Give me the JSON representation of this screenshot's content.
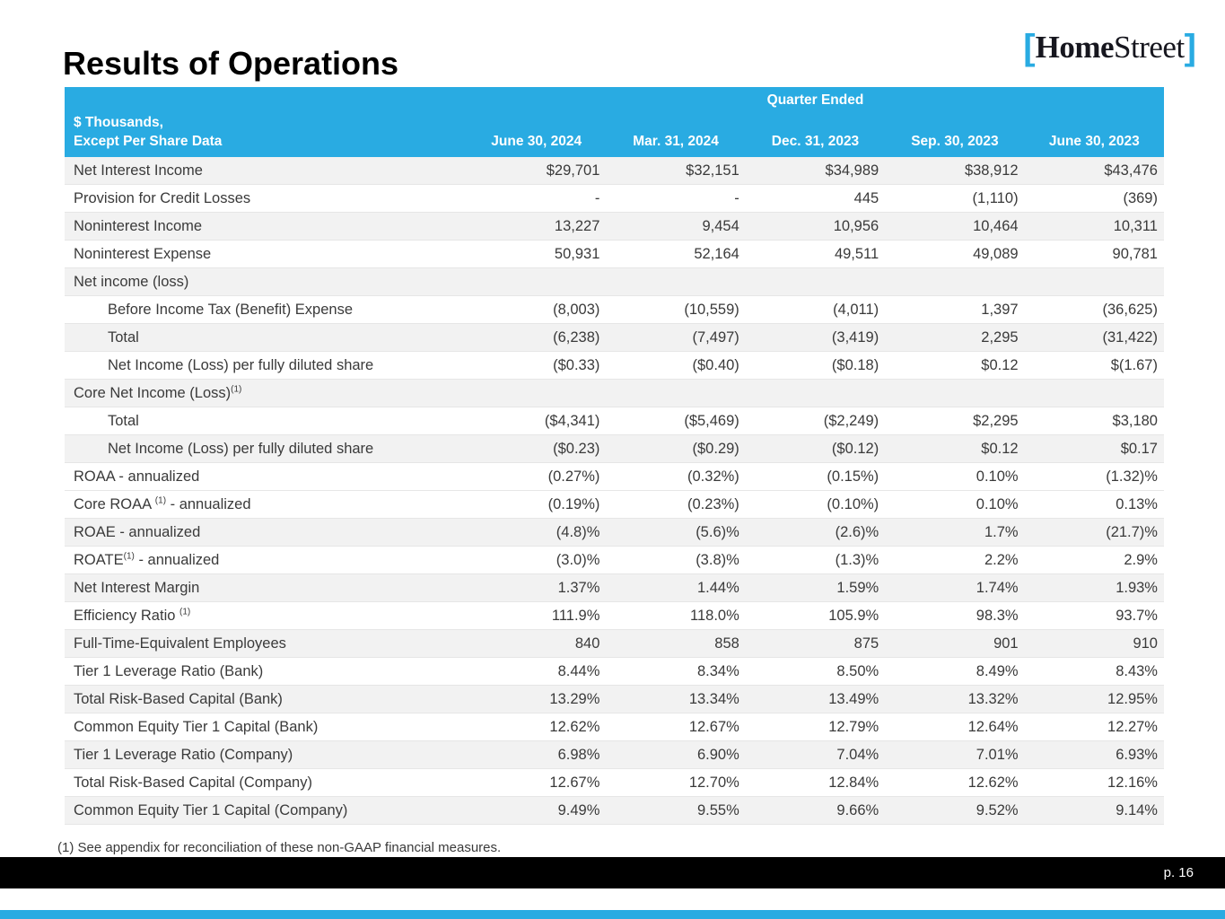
{
  "page": {
    "title": "Results of Operations",
    "logo": {
      "left_bracket": "[",
      "home": "Home",
      "street": "Street",
      "right_bracket": "]"
    },
    "footnote": "(1) See appendix for reconciliation of these non-GAAP financial measures.",
    "page_number": "p. 16"
  },
  "colors": {
    "accent_blue": "#29ABE2",
    "row_shade": "#F2F2F2",
    "footer_bar": "#000000",
    "body_text": "#3A3A3A"
  },
  "table": {
    "group_header": "Quarter Ended",
    "corner_label_line1": "$ Thousands,",
    "corner_label_line2": "Except Per Share Data",
    "columns": [
      "June 30, 2024",
      "Mar. 31, 2024",
      "Dec. 31, 2023",
      "Sep. 30, 2023",
      "June 30, 2023"
    ],
    "rows": [
      {
        "label": "Net Interest Income",
        "values": [
          "$29,701",
          "$32,151",
          "$34,989",
          "$38,912",
          "$43,476"
        ],
        "shade": true
      },
      {
        "label": "Provision for Credit Losses",
        "values": [
          "-",
          "-",
          "445",
          "(1,110)",
          "(369)"
        ]
      },
      {
        "label": "Noninterest Income",
        "values": [
          "13,227",
          "9,454",
          "10,956",
          "10,464",
          "10,311"
        ],
        "shade": true
      },
      {
        "label": "Noninterest Expense",
        "values": [
          "50,931",
          "52,164",
          "49,511",
          "49,089",
          "90,781"
        ]
      },
      {
        "label": "Net income (loss)",
        "values": [
          "",
          "",
          "",
          "",
          ""
        ],
        "section": true,
        "shade": true
      },
      {
        "label": "Before Income Tax (Benefit) Expense",
        "values": [
          "(8,003)",
          "(10,559)",
          "(4,011)",
          "1,397",
          "(36,625)"
        ],
        "indent": true
      },
      {
        "label": "Total",
        "values": [
          "(6,238)",
          "(7,497)",
          "(3,419)",
          "2,295",
          "(31,422)"
        ],
        "indent": true,
        "shade": true
      },
      {
        "label": "Net Income (Loss) per fully diluted share",
        "values": [
          "($0.33)",
          "($0.40)",
          "($0.18)",
          "$0.12",
          "$(1.67)"
        ],
        "indent": true
      },
      {
        "label": "Core Net Income (Loss)",
        "sup": "(1)",
        "values": [
          "",
          "",
          "",
          "",
          ""
        ],
        "section": true,
        "shade": true
      },
      {
        "label": "Total",
        "values": [
          "($4,341)",
          "($5,469)",
          "($2,249)",
          "$2,295",
          "$3,180"
        ],
        "indent": true
      },
      {
        "label": "Net Income (Loss) per fully diluted share",
        "values": [
          "($0.23)",
          "($0.29)",
          "($0.12)",
          "$0.12",
          "$0.17"
        ],
        "indent": true,
        "shade": true
      },
      {
        "label": "ROAA - annualized",
        "values": [
          "(0.27%)",
          "(0.32%)",
          "(0.15%)",
          "0.10%",
          "(1.32)%"
        ]
      },
      {
        "label": "Core ROAA ",
        "sup": "(1)",
        "label_after": " - annualized",
        "values": [
          "(0.19%)",
          "(0.23%)",
          "(0.10%)",
          "0.10%",
          "0.13%"
        ]
      },
      {
        "label": "ROAE - annualized",
        "values": [
          "(4.8)%",
          "(5.6)%",
          "(2.6)%",
          "1.7%",
          "(21.7)%"
        ],
        "shade": true
      },
      {
        "label": "ROATE",
        "sup": "(1)",
        "label_after": " - annualized",
        "values": [
          "(3.0)%",
          "(3.8)%",
          "(1.3)%",
          "2.2%",
          "2.9%"
        ]
      },
      {
        "label": "Net Interest Margin",
        "values": [
          "1.37%",
          "1.44%",
          "1.59%",
          "1.74%",
          "1.93%"
        ],
        "shade": true
      },
      {
        "label": "Efficiency Ratio ",
        "sup": "(1)",
        "values": [
          "111.9%",
          "118.0%",
          "105.9%",
          "98.3%",
          "93.7%"
        ]
      },
      {
        "label": "Full-Time-Equivalent Employees",
        "values": [
          "840",
          "858",
          "875",
          "901",
          "910"
        ],
        "shade": true
      },
      {
        "label": "Tier 1 Leverage Ratio (Bank)",
        "values": [
          "8.44%",
          "8.34%",
          "8.50%",
          "8.49%",
          "8.43%"
        ]
      },
      {
        "label": "Total Risk-Based Capital (Bank)",
        "values": [
          "13.29%",
          "13.34%",
          "13.49%",
          "13.32%",
          "12.95%"
        ],
        "shade": true
      },
      {
        "label": "Common Equity Tier 1 Capital (Bank)",
        "values": [
          "12.62%",
          "12.67%",
          "12.79%",
          "12.64%",
          "12.27%"
        ]
      },
      {
        "label": "Tier 1 Leverage Ratio (Company)",
        "values": [
          "6.98%",
          "6.90%",
          "7.04%",
          "7.01%",
          "6.93%"
        ],
        "shade": true
      },
      {
        "label": "Total Risk-Based Capital (Company)",
        "values": [
          "12.67%",
          "12.70%",
          "12.84%",
          "12.62%",
          "12.16%"
        ]
      },
      {
        "label": "Common Equity Tier 1 Capital (Company)",
        "values": [
          "9.49%",
          "9.55%",
          "9.66%",
          "9.52%",
          "9.14%"
        ],
        "shade": true
      }
    ]
  }
}
